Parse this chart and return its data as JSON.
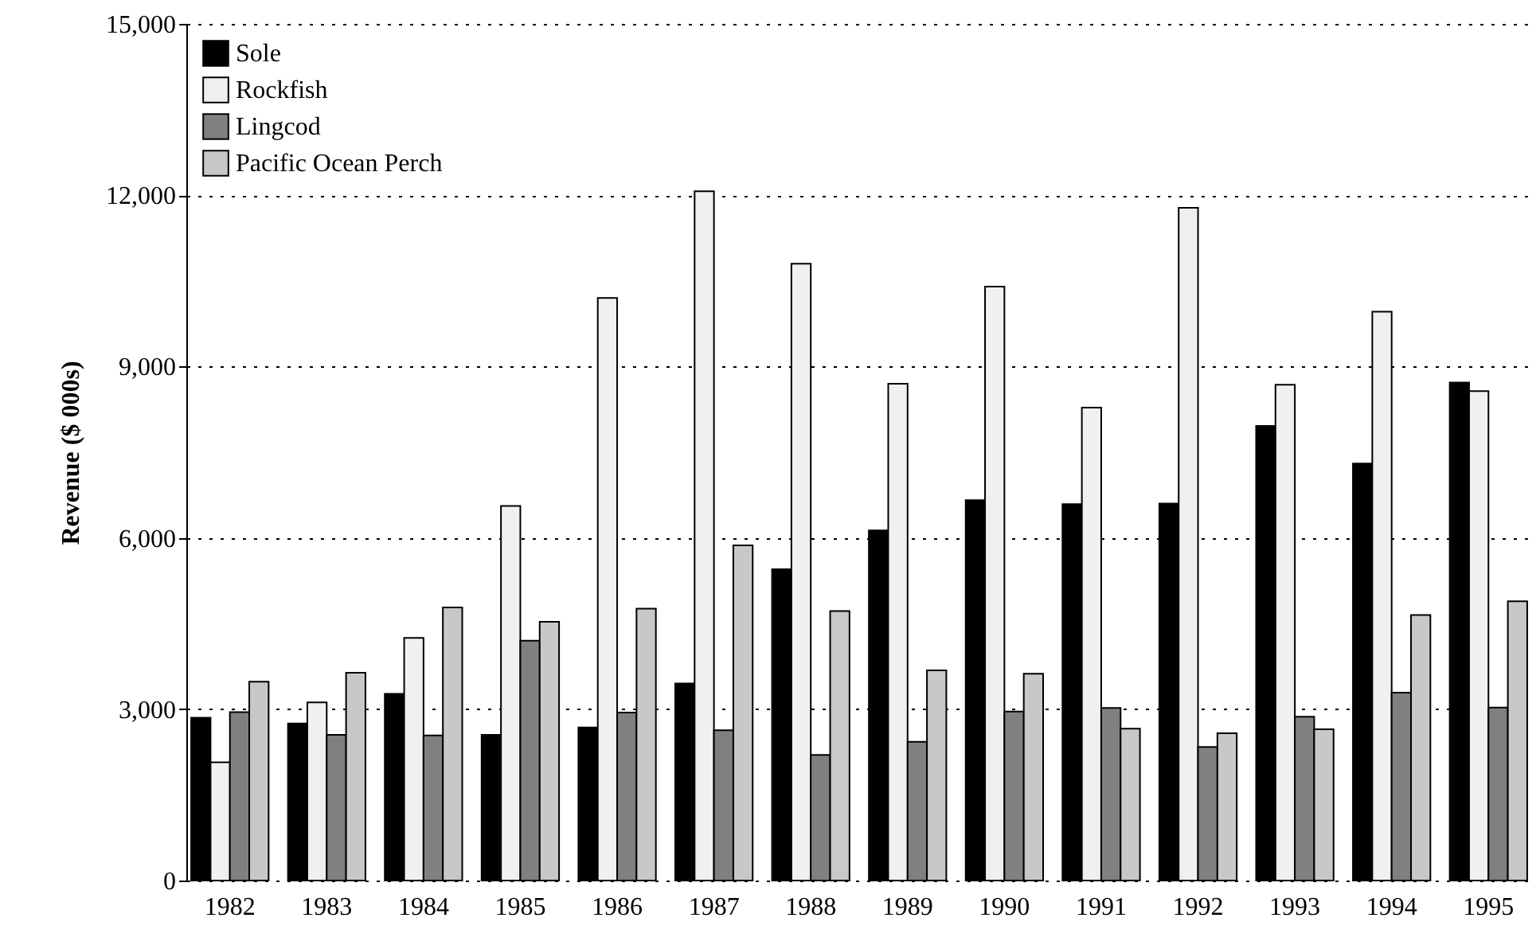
{
  "chart_data": {
    "type": "bar",
    "ylabel": "Revenue ($ 000s)",
    "categories": [
      "1982",
      "1983",
      "1984",
      "1985",
      "1986",
      "1987",
      "1988",
      "1989",
      "1990",
      "1991",
      "1992",
      "1993",
      "1994",
      "1995"
    ],
    "series": [
      {
        "name": "Sole",
        "color": "#000000",
        "values": [
          2850,
          2750,
          3270,
          2550,
          2680,
          3450,
          5450,
          6130,
          6660,
          6590,
          6600,
          7960,
          7300,
          8720
        ]
      },
      {
        "name": "Rockfish",
        "color": "#f0f0f0",
        "values": [
          2070,
          3120,
          4250,
          6560,
          10200,
          12070,
          10800,
          8700,
          10400,
          8280,
          11780,
          8680,
          9960,
          8570
        ]
      },
      {
        "name": "Lingcod",
        "color": "#808080",
        "values": [
          2950,
          2550,
          2540,
          4200,
          2940,
          2630,
          2200,
          2430,
          2960,
          3020,
          2340,
          2870,
          3290,
          3030
        ]
      },
      {
        "name": "Pacific Ocean Perch",
        "color": "#c8c8c8",
        "values": [
          3480,
          3640,
          4780,
          4530,
          4760,
          5870,
          4720,
          3680,
          3620,
          2660,
          2580,
          2650,
          4650,
          4890
        ]
      }
    ],
    "ylim": [
      0,
      15000
    ],
    "yticks": [
      0,
      {
        "value": 3000,
        "label": "3,000"
      },
      {
        "value": 6000,
        "label": "6,000"
      },
      {
        "value": 9000,
        "label": "9,000"
      },
      {
        "value": 12000,
        "label": "12,000"
      },
      {
        "value": 15000,
        "label": "15,000"
      }
    ],
    "grid": "y",
    "legend": "top left"
  }
}
